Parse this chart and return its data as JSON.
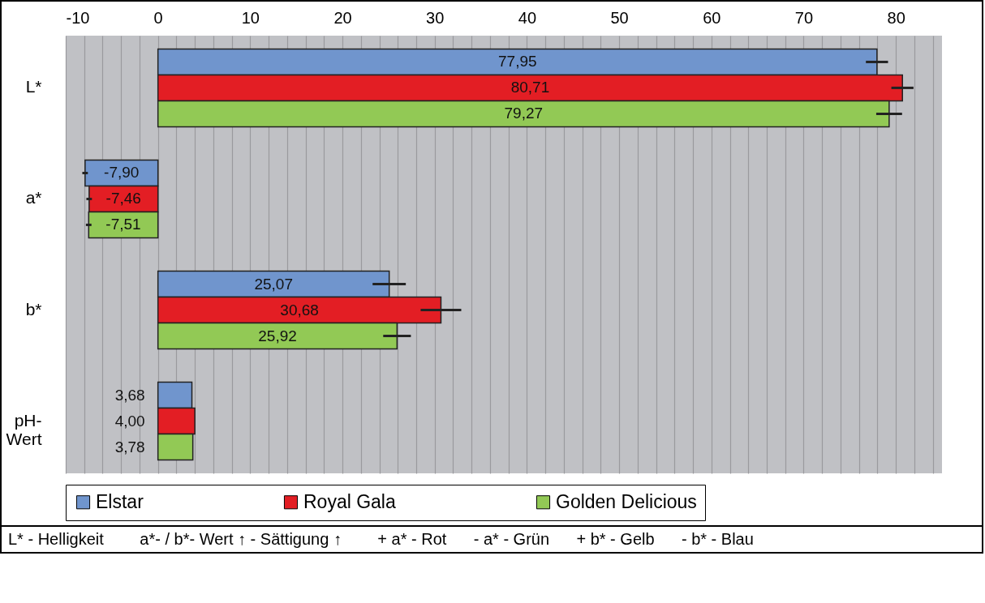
{
  "chart_data": {
    "type": "bar",
    "orientation": "horizontal",
    "categories": [
      "L*",
      "a*",
      "b*",
      "pH-\nWert"
    ],
    "series": [
      {
        "name": "Elstar",
        "color": "#7095cd",
        "values": [
          77.95,
          -7.9,
          25.07,
          3.68
        ],
        "value_labels": [
          "77,95",
          "-7,90",
          "25,07",
          "3,68"
        ],
        "errors": [
          1.2,
          0.3,
          1.8,
          null
        ]
      },
      {
        "name": "Royal Gala",
        "color": "#e31e24",
        "values": [
          80.71,
          -7.46,
          30.68,
          4.0
        ],
        "value_labels": [
          "80,71",
          "-7,46",
          "30,68",
          "4,00"
        ],
        "errors": [
          1.2,
          0.3,
          2.2,
          null
        ]
      },
      {
        "name": "Golden Delicious",
        "color": "#92c955",
        "values": [
          79.27,
          -7.51,
          25.92,
          3.78
        ],
        "value_labels": [
          "79,27",
          "-7,51",
          "25,92",
          "3,78"
        ],
        "errors": [
          1.4,
          0.3,
          1.5,
          null
        ]
      }
    ],
    "xlim": [
      -10,
      85
    ],
    "xticks": [
      -10,
      {
        "value": -8,
        "label": null
      },
      {
        "value": -6,
        "label": null
      },
      {
        "value": -4,
        "label": null
      },
      {
        "value": -2,
        "label": null
      },
      0,
      {
        "value": 2,
        "label": null
      },
      {
        "value": 4,
        "label": null
      },
      {
        "value": 6,
        "label": null
      },
      {
        "value": 8,
        "label": null
      },
      10,
      {
        "value": 12,
        "label": null
      },
      {
        "value": 14,
        "label": null
      },
      {
        "value": 16,
        "label": null
      },
      {
        "value": 18,
        "label": null
      },
      20,
      {
        "value": 22,
        "label": null
      },
      {
        "value": 24,
        "label": null
      },
      {
        "value": 26,
        "label": null
      },
      {
        "value": 28,
        "label": null
      },
      30,
      {
        "value": 32,
        "label": null
      },
      {
        "value": 34,
        "label": null
      },
      {
        "value": 36,
        "label": null
      },
      {
        "value": 38,
        "label": null
      },
      40,
      {
        "value": 42,
        "label": null
      },
      {
        "value": 44,
        "label": null
      },
      {
        "value": 46,
        "label": null
      },
      {
        "value": 48,
        "label": null
      },
      50,
      {
        "value": 52,
        "label": null
      },
      {
        "value": 54,
        "label": null
      },
      {
        "value": 56,
        "label": null
      },
      {
        "value": 58,
        "label": null
      },
      60,
      {
        "value": 62,
        "label": null
      },
      {
        "value": 64,
        "label": null
      },
      {
        "value": 66,
        "label": null
      },
      {
        "value": 68,
        "label": null
      },
      70,
      {
        "value": 72,
        "label": null
      },
      {
        "value": 74,
        "label": null
      },
      {
        "value": 76,
        "label": null
      },
      {
        "value": 78,
        "label": null
      },
      80,
      {
        "value": 82,
        "label": null
      },
      {
        "value": 84,
        "label": null
      }
    ],
    "grid": true,
    "legend": "bottom",
    "annotations": [
      "L* - Helligkeit        a*- / b*- Wert ↑ - Sättigung ↑        + a* - Rot      - a* - Grün      + b* - Gelb      - b* - Blau"
    ]
  }
}
